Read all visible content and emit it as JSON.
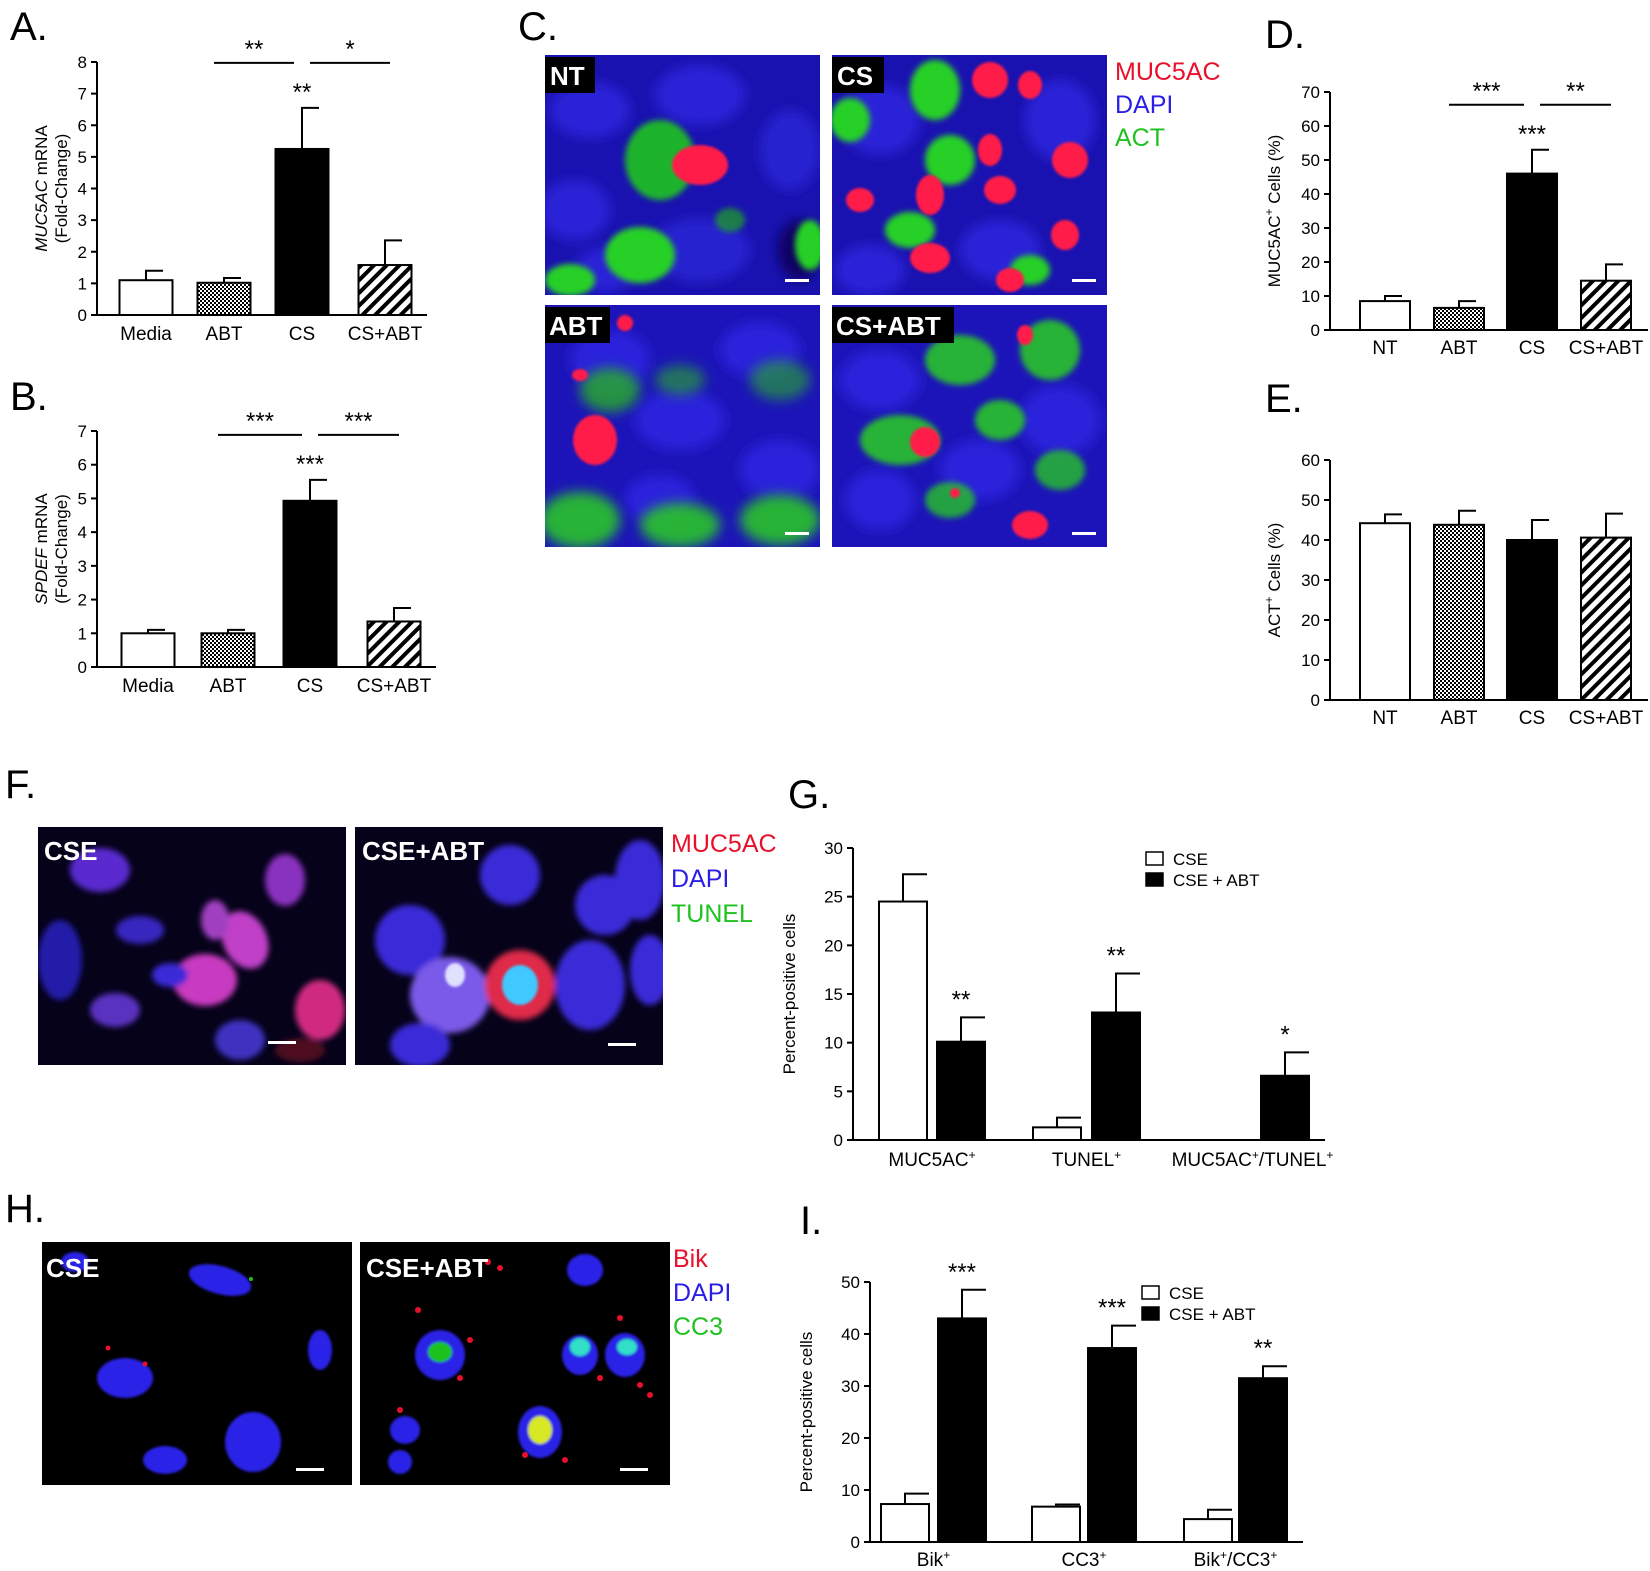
{
  "panel_letters": {
    "A": "A.",
    "B": "B.",
    "C": "C.",
    "D": "D.",
    "E": "E.",
    "F": "F.",
    "G": "G.",
    "H": "H.",
    "I": "I."
  },
  "colors": {
    "red": "#e8102a",
    "blue": "#2b1ee6",
    "green": "#1ec21e",
    "black": "#000000",
    "white": "#ffffff"
  },
  "micrographs": {
    "C": {
      "channels": [
        "MUC5AC",
        "DAPI",
        "ACT"
      ],
      "channel_colors": [
        "#e8102a",
        "#2b1ee6",
        "#1ec21e"
      ],
      "tiles": [
        "NT",
        "CS",
        "ABT",
        "CS+ABT"
      ]
    },
    "F": {
      "channels": [
        "MUC5AC",
        "DAPI",
        "TUNEL"
      ],
      "channel_colors": [
        "#e8102a",
        "#2b1ee6",
        "#1ec21e"
      ],
      "tiles": [
        "CSE",
        "CSE+ABT"
      ]
    },
    "H": {
      "channels": [
        "Bik",
        "DAPI",
        "CC3"
      ],
      "channel_colors": [
        "#e8102a",
        "#2b1ee6",
        "#1ec21e"
      ],
      "tiles": [
        "CSE",
        "CSE+ABT"
      ]
    }
  },
  "chart_data": [
    {
      "id": "A",
      "type": "bar",
      "categories": [
        "Media",
        "ABT",
        "CS",
        "CS+ABT"
      ],
      "values": [
        1.1,
        1.02,
        5.25,
        1.58
      ],
      "errors": [
        0.3,
        0.15,
        1.3,
        0.78
      ],
      "fills": [
        "white",
        "dots",
        "black",
        "hatch"
      ],
      "ylabel": "MUC5AC mRNA",
      "ylabel_italic_part": "MUC5AC",
      "ylabel2": "(Fold-Change)",
      "ylim": [
        0,
        8
      ],
      "yticks": [
        "0",
        "1",
        "2",
        "3",
        "4",
        "5",
        "6",
        "7",
        "8"
      ],
      "bar_stars": [
        {
          "category": "CS",
          "text": "**"
        }
      ],
      "comparisons": [
        {
          "from": "ABT",
          "to": "CS",
          "text": "**"
        },
        {
          "from": "CS",
          "to": "CS+ABT",
          "text": "*"
        }
      ]
    },
    {
      "id": "B",
      "type": "bar",
      "categories": [
        "Media",
        "ABT",
        "CS",
        "CS+ABT"
      ],
      "values": [
        1.0,
        1.0,
        4.93,
        1.35
      ],
      "errors": [
        0.1,
        0.1,
        0.62,
        0.4
      ],
      "fills": [
        "white",
        "dots",
        "black",
        "hatch"
      ],
      "ylabel": "SPDEF mRNA",
      "ylabel_italic_part": "SPDEF",
      "ylabel2": "(Fold-Change)",
      "ylim": [
        0,
        7
      ],
      "yticks": [
        "0",
        "1",
        "2",
        "3",
        "4",
        "5",
        "6",
        "7"
      ],
      "bar_stars": [
        {
          "category": "CS",
          "text": "***"
        }
      ],
      "comparisons": [
        {
          "from": "ABT",
          "to": "CS",
          "text": "***"
        },
        {
          "from": "CS",
          "to": "CS+ABT",
          "text": "***"
        }
      ]
    },
    {
      "id": "D",
      "type": "bar",
      "categories": [
        "NT",
        "ABT",
        "CS",
        "CS+ABT"
      ],
      "values": [
        8.5,
        6.5,
        46,
        14.5
      ],
      "errors": [
        1.5,
        2.0,
        7.0,
        4.8
      ],
      "fills": [
        "white",
        "dots",
        "black",
        "hatch"
      ],
      "ylabel": "MUC5AC+ Cells (%)",
      "ylabel_sup": "+",
      "ylim": [
        0,
        70
      ],
      "yticks": [
        "0",
        "10",
        "20",
        "30",
        "40",
        "50",
        "60",
        "70"
      ],
      "bar_stars": [
        {
          "category": "CS",
          "text": "***"
        }
      ],
      "comparisons": [
        {
          "from": "ABT",
          "to": "CS",
          "text": "***"
        },
        {
          "from": "CS",
          "to": "CS+ABT",
          "text": "**"
        }
      ]
    },
    {
      "id": "E",
      "type": "bar",
      "categories": [
        "NT",
        "ABT",
        "CS",
        "CS+ABT"
      ],
      "values": [
        44.2,
        43.8,
        40.0,
        40.6
      ],
      "errors": [
        2.2,
        3.5,
        5.0,
        6.0
      ],
      "fills": [
        "white",
        "dots",
        "black",
        "hatch"
      ],
      "ylabel": "ACT+ Cells (%)",
      "ylabel_sup": "+",
      "ylim": [
        0,
        60
      ],
      "yticks": [
        "0",
        "10",
        "20",
        "30",
        "40",
        "50",
        "60"
      ],
      "bar_stars": [],
      "comparisons": []
    },
    {
      "id": "G",
      "type": "bar",
      "categories": [
        "MUC5AC+",
        "TUNEL+",
        "MUC5AC+/TUNEL+"
      ],
      "series": [
        {
          "name": "CSE",
          "values": [
            24.5,
            1.3,
            0
          ],
          "errors": [
            2.8,
            1.0,
            0
          ],
          "fill": "white"
        },
        {
          "name": "CSE + ABT",
          "values": [
            10.1,
            13.1,
            6.6
          ],
          "errors": [
            2.5,
            4.0,
            2.4
          ],
          "fill": "black"
        }
      ],
      "ylabel": "Percent-positive cells",
      "ylim": [
        0,
        30
      ],
      "yticks": [
        "0",
        "5",
        "10",
        "15",
        "20",
        "25",
        "30"
      ],
      "stars": [
        "**",
        "**",
        "*"
      ],
      "legend": "top-right"
    },
    {
      "id": "I",
      "type": "bar",
      "categories": [
        "Bik+",
        "CC3+",
        "Bik+/CC3+"
      ],
      "series": [
        {
          "name": "CSE",
          "values": [
            7.3,
            6.8,
            4.4
          ],
          "errors": [
            2.0,
            0.4,
            1.8
          ],
          "fill": "white"
        },
        {
          "name": "CSE + ABT",
          "values": [
            43.0,
            37.3,
            31.5
          ],
          "errors": [
            5.5,
            4.3,
            2.3
          ],
          "fill": "black"
        }
      ],
      "ylabel": "Percent-positive cells",
      "ylim": [
        0,
        50
      ],
      "yticks": [
        "0",
        "10",
        "20",
        "30",
        "40",
        "50"
      ],
      "stars": [
        "***",
        "***",
        "**"
      ],
      "legend": "top-right"
    }
  ]
}
